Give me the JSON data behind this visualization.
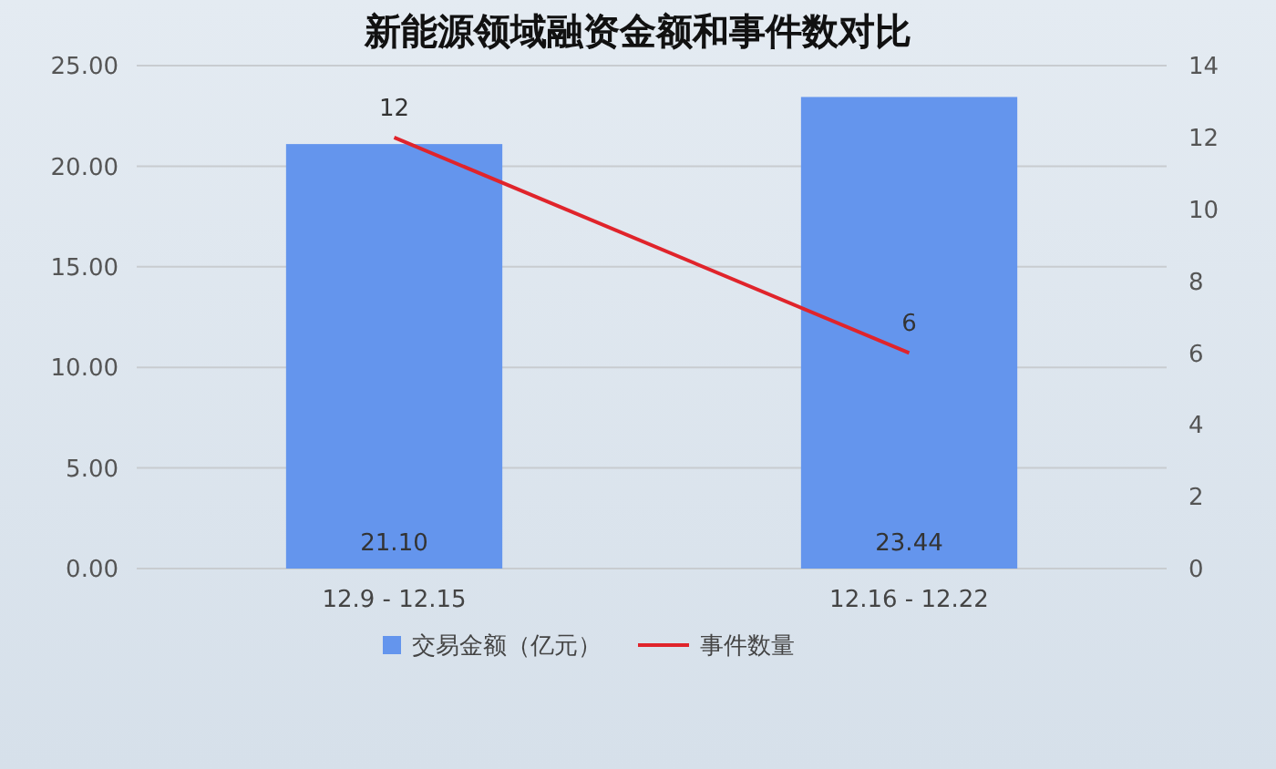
{
  "chart_data": {
    "type": "bar",
    "title": "新能源领域融资金额和事件数对比",
    "categories": [
      "12.9 - 12.15",
      "12.16 - 12.22"
    ],
    "series": [
      {
        "name": "交易金额（亿元）",
        "color": "#6495ed",
        "values": [
          21.1,
          23.44
        ],
        "value_labels": [
          "21.10",
          "23.44"
        ]
      },
      {
        "name": "事件数量",
        "type": "line",
        "axis": "y2",
        "color": "#e0242b",
        "values": [
          12,
          6
        ],
        "value_labels": [
          "12",
          "6"
        ]
      }
    ],
    "ylim": [
      0,
      25
    ],
    "yticks": [
      {
        "value": 0,
        "label": "0.00"
      },
      {
        "value": 5,
        "label": "5.00"
      },
      {
        "value": 10,
        "label": "10.00"
      },
      {
        "value": 15,
        "label": "15.00"
      },
      {
        "value": 20,
        "label": "20.00"
      },
      {
        "value": 25,
        "label": "25.00"
      }
    ],
    "y2lim": [
      0,
      14
    ],
    "y2ticks": [
      0,
      2,
      4,
      6,
      8,
      10,
      12,
      14
    ],
    "grid": "y",
    "legend": "bottom",
    "marker": "none"
  }
}
